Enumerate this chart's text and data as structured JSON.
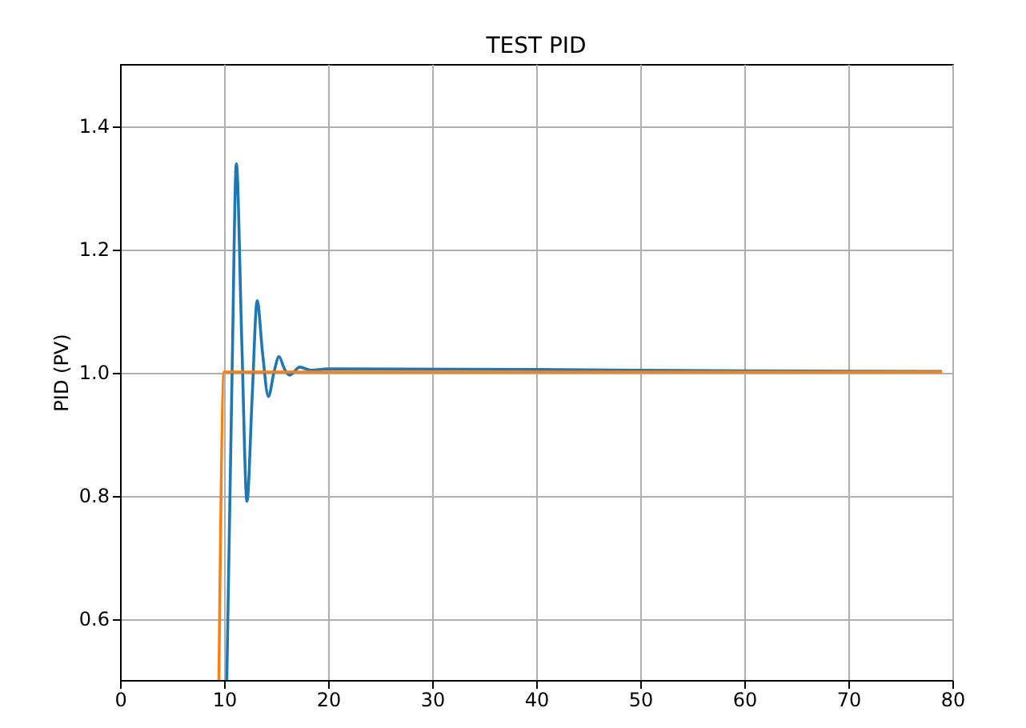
{
  "chart_data": {
    "type": "line",
    "title": "TEST PID",
    "ylabel": "PID (PV)",
    "series": [
      {
        "color": "#1f77b4",
        "x": [
          10.26,
          10.77,
          11.18,
          11.7,
          12.2,
          12.7,
          13.18,
          13.7,
          14.26,
          14.8,
          15.28,
          15.8,
          16.3,
          17.28,
          18.3,
          20,
          40,
          60,
          79
        ],
        "values": [
          0.5,
          1.0,
          1.338,
          1.05,
          0.79,
          0.96,
          1.116,
          1.03,
          0.96,
          1.0,
          1.025,
          1.005,
          0.995,
          1.008,
          1.003,
          1.005,
          1.004,
          1.002,
          1.001
        ]
      },
      {
        "color": "#ff7f0e",
        "x": [
          9.5,
          10,
          79
        ],
        "values": [
          0.5,
          1.0,
          1.0
        ]
      }
    ],
    "xlim": [
      0,
      80
    ],
    "xticks": [
      0,
      10,
      20,
      30,
      40,
      50,
      60,
      70,
      80
    ],
    "ylim": [
      0.5,
      1.5
    ],
    "yticks": [
      0.6,
      0.8,
      {
        "value": 1,
        "label": "1.0"
      },
      1.2,
      1.4
    ],
    "grid": true,
    "legend": false,
    "marker": "none",
    "line_style": "solid"
  }
}
